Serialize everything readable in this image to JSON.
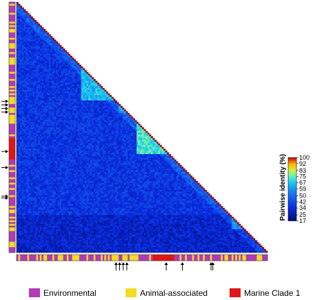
{
  "chart_data": {
    "type": "heatmap",
    "shape": "lower-triangle",
    "colorbar": {
      "title": "Pairwise identity (%)",
      "ticks": [
        100,
        92,
        83,
        75,
        67,
        59,
        50,
        42,
        34,
        25,
        17
      ],
      "range": [
        17,
        100
      ]
    },
    "colors": {
      "environmental": "#b23bb6",
      "animal_associated": "#f2dd24",
      "marine_clade_1": "#e01616",
      "arrow": "#000000"
    },
    "legend": [
      {
        "key": "environmental",
        "label": "Environmental"
      },
      {
        "key": "animal_associated",
        "label": "Animal-associated"
      },
      {
        "key": "marine_clade_1",
        "label": "Marine Clade 1"
      }
    ],
    "n_sequences": 140,
    "high_identity_blocks": [
      {
        "from": 36,
        "to": 54,
        "identity": 64
      },
      {
        "from": 67,
        "to": 84,
        "identity": 72
      },
      {
        "from": 57,
        "to": 61,
        "identity": 60
      },
      {
        "from": 120,
        "to": 126,
        "identity": 58
      }
    ]
  }
}
